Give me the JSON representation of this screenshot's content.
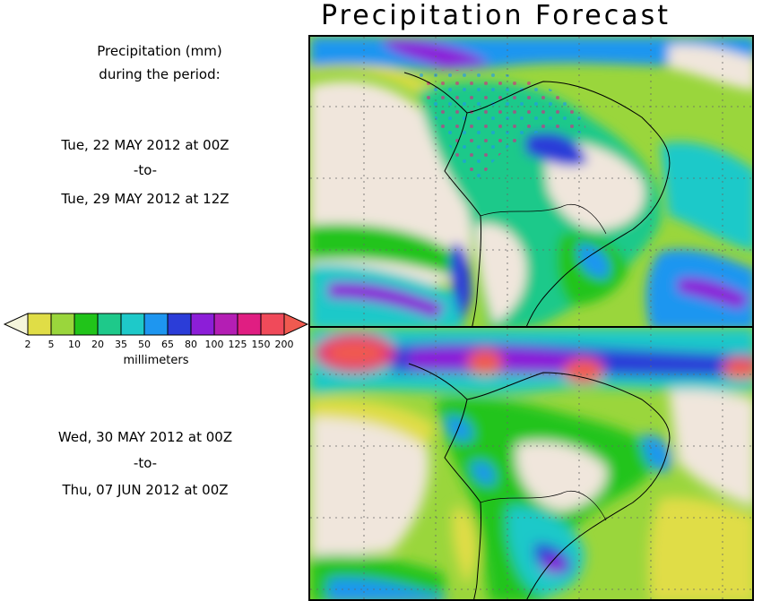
{
  "title": "Precipitation Forecast",
  "header": {
    "line1": "Precipitation (mm)",
    "line2": "during the period:"
  },
  "period1": {
    "start": "Tue, 22 MAY 2012 at 00Z",
    "sep": "-to-",
    "end": "Tue, 29 MAY 2012 at 12Z"
  },
  "period2": {
    "start": "Wed, 30 MAY 2012 at 00Z",
    "sep": "-to-",
    "end": "Thu, 07 JUN 2012 at 00Z"
  },
  "legend": {
    "unit_label": "millimeters",
    "ticks": [
      "2",
      "5",
      "10",
      "20",
      "35",
      "50",
      "65",
      "80",
      "100",
      "125",
      "150",
      "200"
    ],
    "colors": [
      "#f5f5dc",
      "#e0dd46",
      "#9ad63c",
      "#21c41a",
      "#1ec98a",
      "#1ec9c9",
      "#1e96f0",
      "#2b3dd8",
      "#8c1ed8",
      "#b41eb4",
      "#e01e82",
      "#f04a5a",
      "#f05a50"
    ]
  }
}
